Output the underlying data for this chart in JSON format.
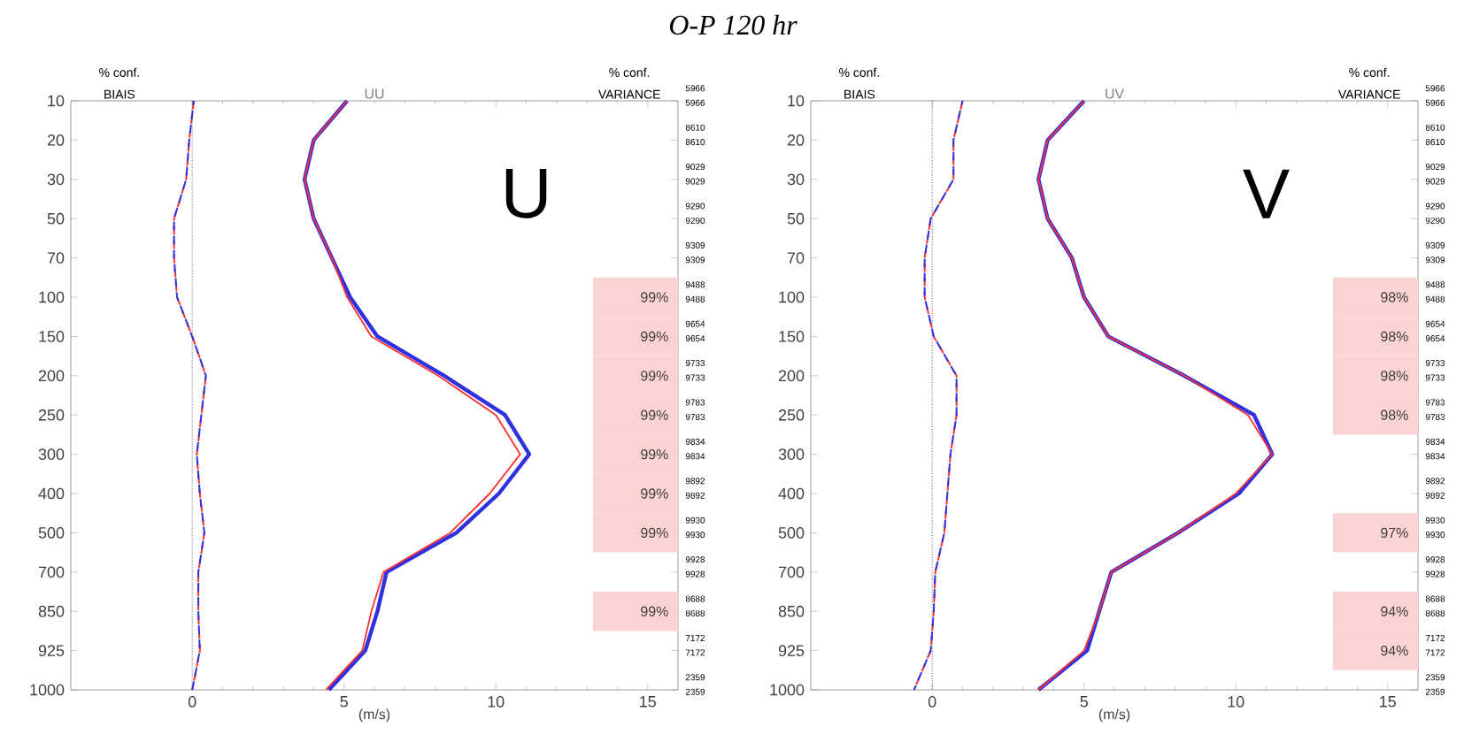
{
  "chart_data": [
    {
      "type": "line",
      "orientation": "horizontal",
      "title": "O-P 120 hr",
      "subtitle": "UU",
      "xlabel": "(m/s)",
      "categories": [
        "10",
        "20",
        "30",
        "50",
        "70",
        "100",
        "150",
        "200",
        "250",
        "300",
        "400",
        "500",
        "700",
        "850",
        "925",
        "1000"
      ],
      "xlim": [
        -4,
        16
      ],
      "xticks": [
        0,
        5,
        10,
        15
      ],
      "series": [
        {
          "color": "#ff3030",
          "line_style": "dashed",
          "values": [
            0.05,
            -0.1,
            -0.2,
            -0.6,
            -0.6,
            -0.5,
            0.0,
            0.45,
            0.3,
            0.15,
            0.25,
            0.4,
            0.2,
            0.2,
            0.25,
            0.0
          ]
        },
        {
          "color": "#3030e0",
          "line_style": "dashed",
          "values": [
            0.05,
            -0.1,
            -0.2,
            -0.6,
            -0.6,
            -0.5,
            0.0,
            0.45,
            0.3,
            0.15,
            0.25,
            0.4,
            0.2,
            0.2,
            0.25,
            0.0
          ]
        },
        {
          "color": "#3030e0",
          "line_style": "solid",
          "values": [
            5.1,
            4.0,
            3.7,
            4.0,
            4.6,
            5.2,
            6.1,
            8.3,
            10.3,
            11.1,
            10.1,
            8.7,
            6.4,
            6.1,
            5.7,
            4.5
          ]
        },
        {
          "color": "#ff3030",
          "line_style": "solid",
          "values": [
            5.1,
            4.0,
            3.7,
            4.0,
            4.6,
            5.1,
            5.9,
            8.1,
            10.0,
            10.8,
            9.8,
            8.5,
            6.3,
            5.9,
            5.6,
            4.4
          ]
        }
      ],
      "ref_lines": [
        {
          "axis": "x",
          "value": 0,
          "color": "#000000",
          "line_style": "dotted"
        }
      ],
      "bands": [
        {
          "axis": "y",
          "from": "100",
          "to": "100",
          "color": "#fbd3d3",
          "label": "99%"
        },
        {
          "axis": "y",
          "from": "150",
          "to": "150",
          "color": "#fbd3d3",
          "label": "99%"
        },
        {
          "axis": "y",
          "from": "200",
          "to": "200",
          "color": "#fbd3d3",
          "label": "99%"
        },
        {
          "axis": "y",
          "from": "250",
          "to": "250",
          "color": "#fbd3d3",
          "label": "99%"
        },
        {
          "axis": "y",
          "from": "300",
          "to": "300",
          "color": "#fbd3d3",
          "label": "99%"
        },
        {
          "axis": "y",
          "from": "400",
          "to": "400",
          "color": "#fbd3d3",
          "label": "99%"
        },
        {
          "axis": "y",
          "from": "500",
          "to": "500",
          "color": "#fbd3d3",
          "label": "99%"
        },
        {
          "axis": "y",
          "from": "850",
          "to": "850",
          "color": "#fbd3d3",
          "label": "99%"
        }
      ],
      "annotations": [
        "% conf.",
        "BIAIS",
        "% conf.",
        "VARIANCE",
        "U",
        "5966",
        "5966",
        "8610",
        "8610",
        "9029",
        "9029",
        "9290",
        "9290",
        "9309",
        "9309",
        "9488",
        "9488",
        "9654",
        "9654",
        "9733",
        "9733",
        "9783",
        "9783",
        "9834",
        "9834",
        "9892",
        "9892",
        "9930",
        "9930",
        "9928",
        "9928",
        "8688",
        "8688",
        "7172",
        "7172",
        "2359",
        "2359"
      ]
    },
    {
      "type": "line",
      "orientation": "horizontal",
      "subtitle": "UV",
      "xlabel": "(m/s)",
      "categories": [
        "10",
        "20",
        "30",
        "50",
        "70",
        "100",
        "150",
        "200",
        "250",
        "300",
        "400",
        "500",
        "700",
        "850",
        "925",
        "1000"
      ],
      "xlim": [
        -4,
        16
      ],
      "xticks": [
        0,
        5,
        10,
        15
      ],
      "series": [
        {
          "color": "#ff3030",
          "line_style": "dashed",
          "values": [
            1.0,
            0.7,
            0.7,
            -0.05,
            -0.25,
            -0.25,
            0.05,
            0.8,
            0.8,
            0.6,
            0.5,
            0.4,
            0.1,
            0.05,
            -0.05,
            -0.6
          ]
        },
        {
          "color": "#3030e0",
          "line_style": "dashed",
          "values": [
            1.0,
            0.7,
            0.7,
            -0.05,
            -0.25,
            -0.25,
            0.05,
            0.8,
            0.8,
            0.6,
            0.5,
            0.4,
            0.1,
            0.05,
            -0.05,
            -0.6
          ]
        },
        {
          "color": "#3030e0",
          "line_style": "solid",
          "values": [
            5.0,
            3.8,
            3.5,
            3.8,
            4.6,
            5.0,
            5.8,
            8.3,
            10.6,
            11.2,
            10.1,
            8.1,
            5.9,
            5.5,
            5.1,
            3.5
          ]
        },
        {
          "color": "#ff3030",
          "line_style": "solid",
          "values": [
            5.0,
            3.8,
            3.5,
            3.8,
            4.6,
            5.0,
            5.8,
            8.3,
            10.4,
            11.2,
            10.0,
            8.1,
            5.9,
            5.5,
            5.0,
            3.5
          ]
        }
      ],
      "ref_lines": [
        {
          "axis": "x",
          "value": 0,
          "color": "#000000",
          "line_style": "dotted"
        }
      ],
      "bands": [
        {
          "axis": "y",
          "from": "100",
          "to": "100",
          "color": "#fbd3d3",
          "label": "98%"
        },
        {
          "axis": "y",
          "from": "150",
          "to": "150",
          "color": "#fbd3d3",
          "label": "98%"
        },
        {
          "axis": "y",
          "from": "200",
          "to": "200",
          "color": "#fbd3d3",
          "label": "98%"
        },
        {
          "axis": "y",
          "from": "250",
          "to": "250",
          "color": "#fbd3d3",
          "label": "98%"
        },
        {
          "axis": "y",
          "from": "500",
          "to": "500",
          "color": "#fbd3d3",
          "label": "97%"
        },
        {
          "axis": "y",
          "from": "850",
          "to": "850",
          "color": "#fbd3d3",
          "label": "94%"
        },
        {
          "axis": "y",
          "from": "925",
          "to": "925",
          "color": "#fbd3d3",
          "label": "94%"
        }
      ],
      "annotations": [
        "% conf.",
        "BIAIS",
        "% conf.",
        "VARIANCE",
        "V",
        "5966",
        "5966",
        "8610",
        "8610",
        "9029",
        "9029",
        "9290",
        "9290",
        "9309",
        "9309",
        "9488",
        "9488",
        "9654",
        "9654",
        "9733",
        "9733",
        "9783",
        "9783",
        "9834",
        "9834",
        "9892",
        "9892",
        "9930",
        "9930",
        "9928",
        "9928",
        "8688",
        "8688",
        "7172",
        "7172",
        "2359",
        "2359"
      ]
    }
  ]
}
